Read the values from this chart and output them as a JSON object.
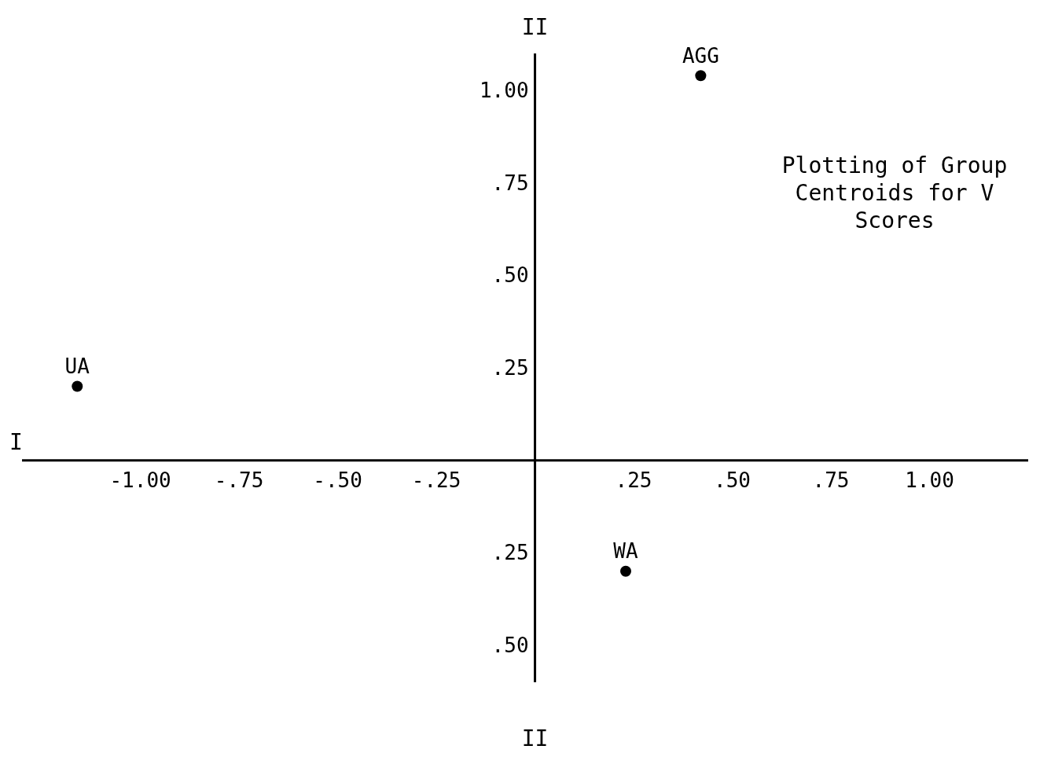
{
  "chart_data": {
    "type": "scatter",
    "title": "Plotting of Group Centroids for V Scores",
    "xlabel": "I",
    "ylabel": "II",
    "series": [
      {
        "name": "UA",
        "color": "#000000",
        "x": [
          -1.16
        ],
        "values": [
          0.2
        ]
      },
      {
        "name": "AGG",
        "color": "#000000",
        "x": [
          0.42
        ],
        "values": [
          1.04
        ]
      },
      {
        "name": "WA",
        "color": "#000000",
        "x": [
          0.23
        ],
        "values": [
          -0.3
        ]
      }
    ],
    "xlim": [
      -1.3,
      1.25
    ],
    "xticks": [
      {
        "value": -1,
        "label": "-1.00"
      },
      {
        "value": -0.75,
        "label": "-.75"
      },
      {
        "value": -0.5,
        "label": "-.50"
      },
      {
        "value": -0.25,
        "label": "-.25"
      },
      {
        "value": 0.25,
        "label": ".25"
      },
      {
        "value": 0.5,
        "label": ".50"
      },
      {
        "value": 0.75,
        "label": ".75"
      },
      {
        "value": 1,
        "label": "1.00"
      }
    ],
    "ylim": [
      -0.6,
      1.1
    ],
    "yticks": [
      {
        "value": -0.5,
        "label": ".50"
      },
      {
        "value": -0.25,
        "label": ".25"
      },
      {
        "value": 0.25,
        "label": ".25"
      },
      {
        "value": 0.5,
        "label": ".50"
      },
      {
        "value": 0.75,
        "label": ".75"
      },
      {
        "value": 1,
        "label": "1.00"
      }
    ],
    "grid": false,
    "legend": false,
    "marker": "circle"
  }
}
